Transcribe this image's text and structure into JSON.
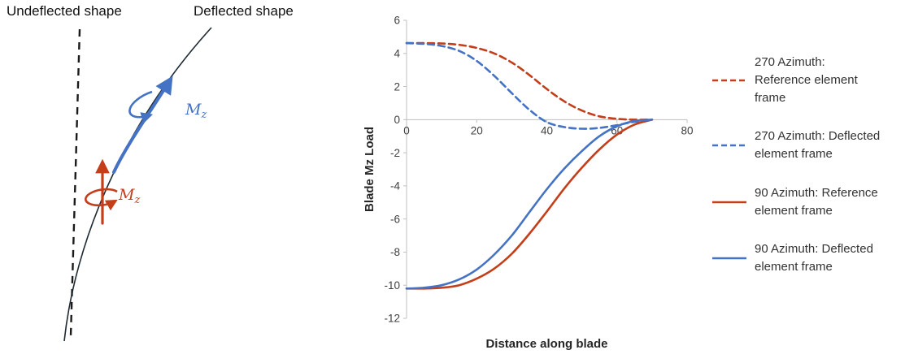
{
  "diagram": {
    "undeflected_label": "Undeflected shape",
    "deflected_label": "Deflected shape",
    "moment_label_main": "M",
    "moment_label_sub": "z",
    "blue": "#4472C4",
    "red": "#C43E1A"
  },
  "chart_data": {
    "type": "line",
    "title": "",
    "xlabel": "Distance along blade",
    "ylabel": "Blade Mz Load",
    "xlim": [
      0,
      80
    ],
    "ylim": [
      -12,
      6
    ],
    "xticks": [
      0,
      20,
      40,
      60,
      80
    ],
    "yticks": [
      6,
      4,
      2,
      0,
      -2,
      -4,
      -6,
      -8,
      -10,
      -12
    ],
    "grid": false,
    "legend_position": "right",
    "x": [
      0,
      5,
      10,
      15,
      20,
      25,
      30,
      35,
      40,
      45,
      50,
      55,
      60,
      65,
      70
    ],
    "series": [
      {
        "name": "270 Azimuth: Reference element frame",
        "color": "#C43E1A",
        "dash": true,
        "y": [
          4.62,
          4.62,
          4.6,
          4.52,
          4.33,
          4.0,
          3.45,
          2.7,
          1.85,
          1.1,
          0.55,
          0.2,
          0.05,
          0,
          0
        ]
      },
      {
        "name": "270 Azimuth: Deflected element frame",
        "color": "#4472C4",
        "dash": true,
        "y": [
          4.62,
          4.58,
          4.45,
          4.15,
          3.55,
          2.65,
          1.6,
          0.6,
          -0.15,
          -0.45,
          -0.55,
          -0.5,
          -0.33,
          -0.13,
          0
        ]
      },
      {
        "name": "90 Azimuth: Reference element frame",
        "color": "#C43E1A",
        "dash": false,
        "y": [
          -10.2,
          -10.2,
          -10.15,
          -10.0,
          -9.6,
          -9.0,
          -8.1,
          -6.9,
          -5.55,
          -4.15,
          -2.9,
          -1.8,
          -0.9,
          -0.3,
          0
        ]
      },
      {
        "name": "90 Azimuth: Deflected element frame",
        "color": "#4472C4",
        "dash": false,
        "y": [
          -10.2,
          -10.15,
          -10.0,
          -9.65,
          -9.05,
          -8.15,
          -7.0,
          -5.6,
          -4.2,
          -2.95,
          -1.9,
          -1.0,
          -0.4,
          -0.08,
          0
        ]
      }
    ]
  }
}
